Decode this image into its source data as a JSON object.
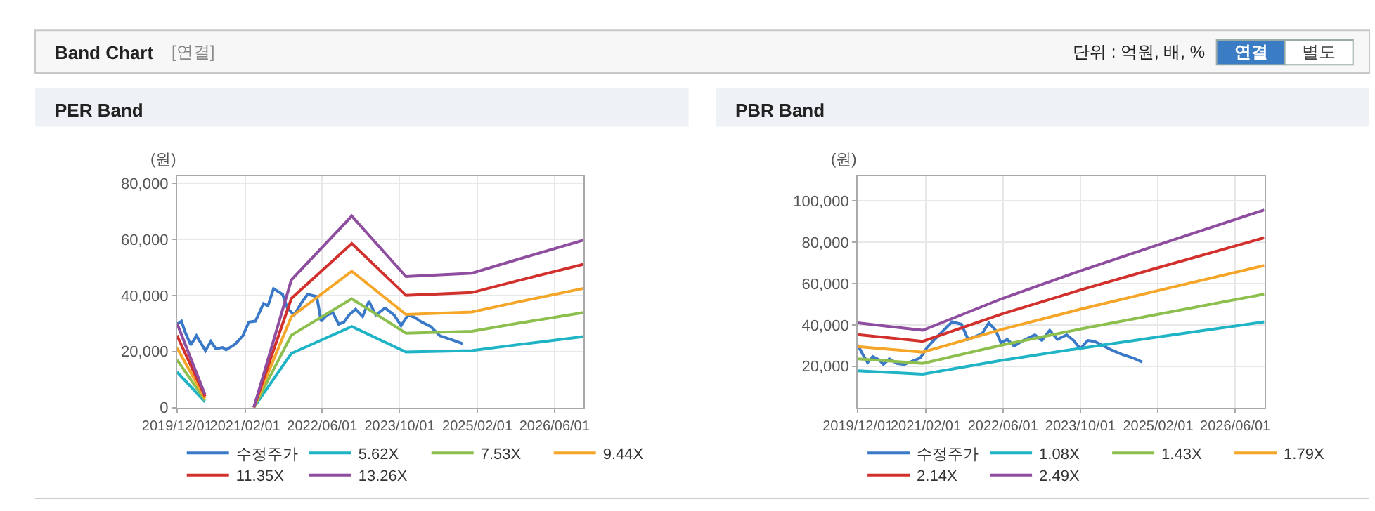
{
  "chart_data": [
    {
      "type": "other",
      "title": "Band Chart",
      "annotations": [
        "[연결]",
        "단위 : 억원, 배, %",
        "연결",
        "별도"
      ]
    },
    {
      "type": "line",
      "title": "PER Band",
      "ylabel": "(원)",
      "grid": true,
      "legend": "bottom",
      "marker": "none",
      "line_style": "solid",
      "xlim": [
        "2019-12-01",
        "2026-12-01"
      ],
      "xticks": [
        {
          "value": "2019-12-01",
          "label": "2019/12/01"
        },
        {
          "value": "2021-02-01",
          "label": "2021/02/01"
        },
        {
          "value": "2022-06-01",
          "label": "2022/06/01"
        },
        {
          "value": "2023-10-01",
          "label": "2023/10/01"
        },
        {
          "value": "2025-02-01",
          "label": "2025/02/01"
        },
        {
          "value": "2026-06-01",
          "label": "2026/06/01"
        }
      ],
      "ylim": [
        0,
        82500
      ],
      "yticks": [
        0,
        {
          "value": 20000,
          "label": "20,000"
        },
        {
          "value": 40000,
          "label": "40,000"
        },
        {
          "value": 60000,
          "label": "60,000"
        },
        {
          "value": 80000,
          "label": "80,000"
        }
      ],
      "series": [
        {
          "name": "수정주가",
          "color": "#3a78c8",
          "x": [
            "2019-12-01",
            "2019-12-29",
            "2020-01-19",
            "2020-02-25",
            "2020-04-01",
            "2020-04-28",
            "2020-05-28",
            "2020-07-01",
            "2020-08-01",
            "2020-09-13",
            "2020-10-04",
            "2020-11-30",
            "2021-01-18",
            "2021-02-25",
            "2021-04-07",
            "2021-05-28",
            "2021-06-25",
            "2021-07-30",
            "2021-09-25",
            "2021-10-25",
            "2021-12-07",
            "2022-01-19",
            "2022-03-01",
            "2022-04-28",
            "2022-05-25",
            "2022-07-01",
            "2022-08-07",
            "2022-09-13",
            "2022-10-16",
            "2022-11-16",
            "2022-12-28",
            "2023-02-10",
            "2023-03-22",
            "2023-05-04",
            "2023-07-01",
            "2023-08-28",
            "2023-10-10",
            "2023-11-22",
            "2024-01-04",
            "2024-02-16",
            "2024-04-13",
            "2024-06-10",
            "2024-08-22",
            "2024-11-01"
          ],
          "values": [
            29700,
            30800,
            27200,
            22300,
            25600,
            23100,
            20300,
            23600,
            21000,
            21400,
            20600,
            22600,
            25600,
            30500,
            30800,
            37100,
            36300,
            42400,
            40400,
            35500,
            33000,
            37100,
            40400,
            39600,
            30800,
            33000,
            33800,
            29700,
            30500,
            33000,
            35100,
            32500,
            37900,
            33000,
            35500,
            33000,
            29200,
            33000,
            32200,
            30500,
            28900,
            25600,
            24200,
            22800
          ]
        },
        {
          "name": "5.62X",
          "color": "#1fb3c6",
          "x": [
            "2019-12-01",
            "2020-05-25",
            "2020-10-01",
            "2021-03-28",
            "2021-11-19",
            "2022-12-04",
            "2023-11-10",
            "2024-12-28",
            "2025-10-10",
            "2026-12-01"
          ],
          "values": [
            12700,
            2000,
            null,
            0,
            19300,
            28900,
            19800,
            20300,
            22400,
            25300
          ]
        },
        {
          "name": "7.53X",
          "color": "#8dbf4e",
          "x": [
            "2019-12-01",
            "2020-05-25",
            "2020-10-01",
            "2021-03-28",
            "2021-11-19",
            "2022-12-04",
            "2023-11-10",
            "2024-12-28",
            "2025-10-10",
            "2026-12-01"
          ],
          "values": [
            17000,
            2600,
            null,
            0,
            25800,
            38800,
            26500,
            27200,
            30000,
            33900
          ]
        },
        {
          "name": "9.44X",
          "color": "#f5a628",
          "x": [
            "2019-12-01",
            "2020-05-25",
            "2020-10-01",
            "2021-03-28",
            "2021-11-19",
            "2022-12-04",
            "2023-11-10",
            "2024-12-28",
            "2025-10-10",
            "2026-12-01"
          ],
          "values": [
            21300,
            3300,
            null,
            0,
            32400,
            48600,
            33200,
            34100,
            37600,
            42500
          ]
        },
        {
          "name": "11.35X",
          "color": "#d2302d",
          "x": [
            "2019-12-01",
            "2020-05-25",
            "2020-10-01",
            "2021-03-28",
            "2021-11-19",
            "2022-12-04",
            "2023-11-10",
            "2024-12-28",
            "2025-10-10",
            "2026-12-01"
          ],
          "values": [
            25700,
            4000,
            null,
            0,
            38900,
            58500,
            40000,
            41000,
            45200,
            51100
          ]
        },
        {
          "name": "13.26X",
          "color": "#8e4d9e",
          "x": [
            "2019-12-01",
            "2020-05-25",
            "2020-10-01",
            "2021-03-28",
            "2021-11-19",
            "2022-12-04",
            "2023-11-10",
            "2024-12-28",
            "2025-10-10",
            "2026-12-01"
          ],
          "values": [
            30000,
            4600,
            null,
            0,
            45500,
            68300,
            46700,
            47900,
            52800,
            59700
          ]
        }
      ]
    },
    {
      "type": "line",
      "title": "PBR Band",
      "ylabel": "(원)",
      "grid": true,
      "legend": "bottom",
      "marker": "none",
      "line_style": "solid",
      "xlim": [
        "2019-12-01",
        "2026-12-01"
      ],
      "xticks": [
        {
          "value": "2019-12-01",
          "label": "2019/12/01"
        },
        {
          "value": "2021-02-01",
          "label": "2021/02/01"
        },
        {
          "value": "2022-06-01",
          "label": "2022/06/01"
        },
        {
          "value": "2023-10-01",
          "label": "2023/10/01"
        },
        {
          "value": "2025-02-01",
          "label": "2025/02/01"
        },
        {
          "value": "2026-06-01",
          "label": "2026/06/01"
        }
      ],
      "ylim": [
        0,
        112000
      ],
      "yticks": [
        {
          "value": 20000,
          "label": "20,000"
        },
        {
          "value": 40000,
          "label": "40,000"
        },
        {
          "value": 60000,
          "label": "60,000"
        },
        {
          "value": 80000,
          "label": "80,000"
        },
        {
          "value": 100000,
          "label": "100,000"
        }
      ],
      "series": [
        {
          "name": "수정주가",
          "color": "#3a78c8",
          "x": [
            "2019-12-01",
            "2020-01-01",
            "2020-02-01",
            "2020-03-04",
            "2020-04-13",
            "2020-05-10",
            "2020-06-16",
            "2020-08-04",
            "2020-09-19",
            "2020-11-10",
            "2020-12-28",
            "2021-02-10",
            "2021-03-22",
            "2021-05-19",
            "2021-07-16",
            "2021-09-13",
            "2021-10-25",
            "2021-12-07",
            "2022-01-22",
            "2022-03-04",
            "2022-04-16",
            "2022-05-19",
            "2022-06-28",
            "2022-08-10",
            "2022-10-07",
            "2022-12-19",
            "2023-02-01",
            "2023-03-22",
            "2023-05-10",
            "2023-07-07",
            "2023-08-19",
            "2023-10-01",
            "2023-11-16",
            "2023-12-28",
            "2024-02-25",
            "2024-04-22",
            "2024-06-16",
            "2024-08-28",
            "2024-10-25"
          ],
          "values": [
            30300,
            25800,
            21800,
            24700,
            23100,
            20900,
            23600,
            21300,
            20900,
            22500,
            24000,
            29200,
            32500,
            37000,
            41500,
            40300,
            33000,
            34300,
            35900,
            41000,
            37400,
            31400,
            33000,
            29800,
            32500,
            35200,
            32500,
            37400,
            33000,
            35200,
            32500,
            28500,
            32500,
            32100,
            29800,
            27600,
            25800,
            24000,
            22000
          ]
        },
        {
          "name": "1.08X",
          "color": "#1fb3c6",
          "x": [
            "2019-12-01",
            "2021-01-13",
            "2022-05-28",
            "2023-10-01",
            "2025-01-25",
            "2026-12-01"
          ],
          "values": [
            17800,
            16200,
            22900,
            28700,
            34100,
            41500
          ]
        },
        {
          "name": "1.43X",
          "color": "#8dbf4e",
          "x": [
            "2019-12-01",
            "2021-01-13",
            "2022-05-28",
            "2023-10-01",
            "2025-01-25",
            "2026-12-01"
          ],
          "values": [
            23600,
            21400,
            30300,
            38000,
            45100,
            54900
          ]
        },
        {
          "name": "1.79X",
          "color": "#f5a628",
          "x": [
            "2019-12-01",
            "2021-01-13",
            "2022-05-28",
            "2023-10-01",
            "2025-01-25",
            "2026-12-01"
          ],
          "values": [
            29500,
            26800,
            37900,
            47600,
            56500,
            68800
          ]
        },
        {
          "name": "2.14X",
          "color": "#d2302d",
          "x": [
            "2019-12-01",
            "2021-01-13",
            "2022-05-28",
            "2023-10-01",
            "2025-01-25",
            "2026-12-01"
          ],
          "values": [
            35300,
            32100,
            45400,
            56900,
            67600,
            82200
          ]
        },
        {
          "name": "2.49X",
          "color": "#8e4d9e",
          "x": [
            "2019-12-01",
            "2021-01-13",
            "2022-05-28",
            "2023-10-01",
            "2025-01-25",
            "2026-12-01"
          ],
          "values": [
            41000,
            37400,
            52800,
            66200,
            78600,
            95700
          ]
        }
      ]
    }
  ]
}
